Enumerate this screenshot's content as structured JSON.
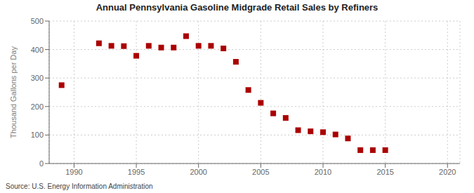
{
  "chart_data": {
    "type": "scatter",
    "title": "Annual Pennsylvania Gasoline Midgrade Retail Sales by Refiners",
    "y_label": "Thousand Gallons per Day",
    "annotations": [
      "Source: U.S. Energy Information Administration"
    ],
    "x": [
      1989,
      1992,
      1993,
      1994,
      1995,
      1996,
      1997,
      1998,
      1999,
      2000,
      2001,
      2002,
      2003,
      2004,
      2005,
      2006,
      2007,
      2008,
      2009,
      2010,
      2011,
      2012,
      2013,
      2014,
      2015
    ],
    "values": [
      275,
      422,
      413,
      412,
      378,
      413,
      407,
      407,
      447,
      413,
      413,
      404,
      357,
      258,
      213,
      176,
      160,
      117,
      113,
      110,
      102,
      88,
      47,
      47,
      47
    ],
    "color": "#aa0000",
    "marker": "square",
    "xlim": [
      1988,
      2021
    ],
    "ylim": [
      0,
      500
    ],
    "xticks": [
      1990,
      1995,
      2000,
      2005,
      2010,
      2015,
      2020
    ],
    "yticks": [
      0,
      100,
      200,
      300,
      400,
      500
    ],
    "grid": true
  }
}
